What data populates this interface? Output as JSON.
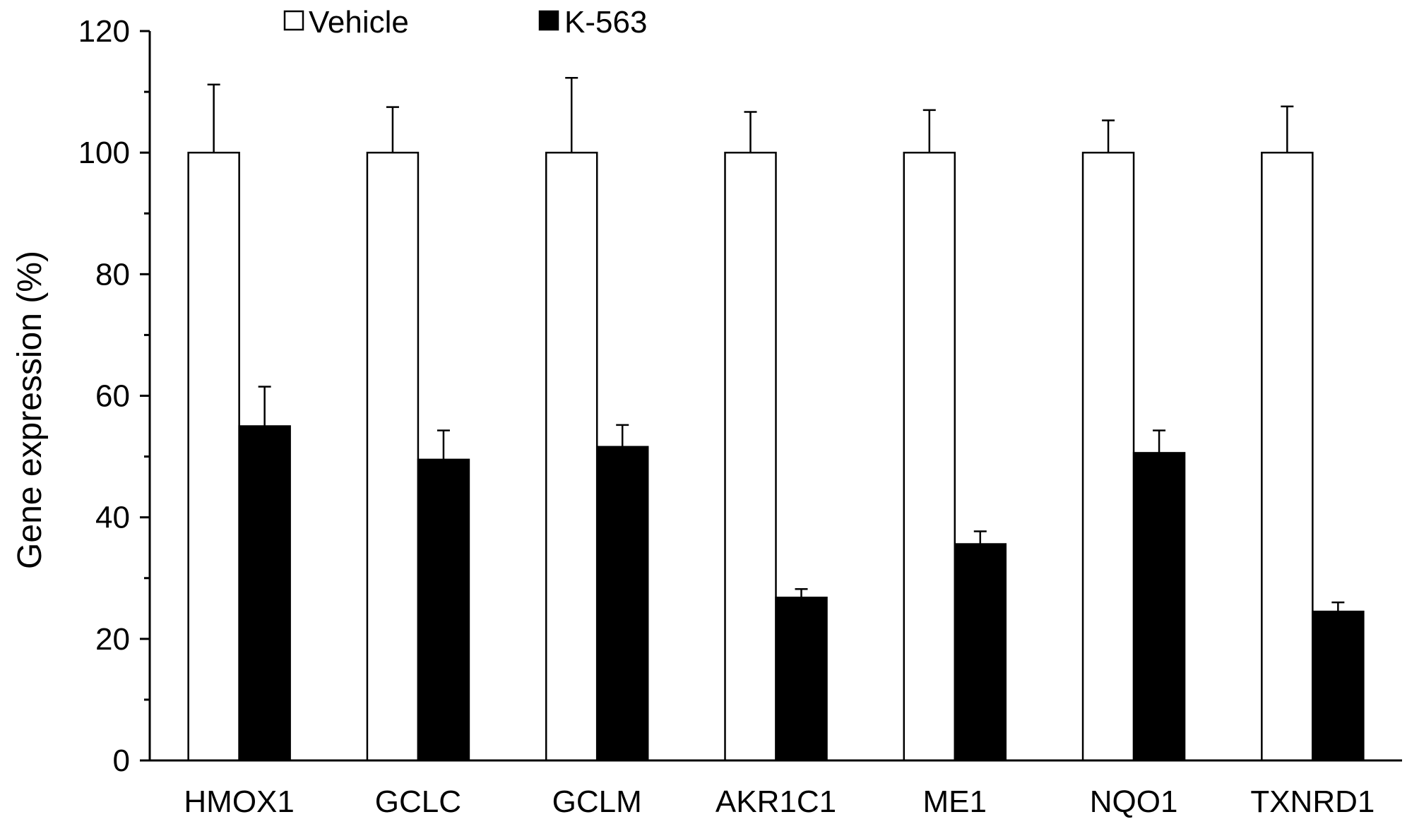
{
  "chart_data": {
    "type": "bar",
    "title": "",
    "xlabel": "",
    "ylabel": "Gene expression (%)",
    "ylim": [
      0,
      120
    ],
    "yticks": [
      0,
      20,
      40,
      60,
      80,
      100,
      120
    ],
    "grid": false,
    "legend_position": "top",
    "categories": [
      "HMOX1",
      "GCLC",
      "GCLM",
      "AKR1C1",
      "ME1",
      "NQO1",
      "TXNRD1"
    ],
    "series": [
      {
        "name": "Vehicle",
        "color": "#ffffff",
        "values": [
          100,
          100,
          100,
          100,
          100,
          100,
          100
        ],
        "errors": [
          11.2,
          7.5,
          12.3,
          6.7,
          7.0,
          5.3,
          7.6
        ]
      },
      {
        "name": "K-563",
        "color": "#000000",
        "values": [
          55.0,
          49.5,
          51.6,
          26.8,
          35.6,
          50.6,
          24.5
        ],
        "errors": [
          6.5,
          4.8,
          3.6,
          1.4,
          2.1,
          3.7,
          1.5
        ]
      }
    ]
  }
}
